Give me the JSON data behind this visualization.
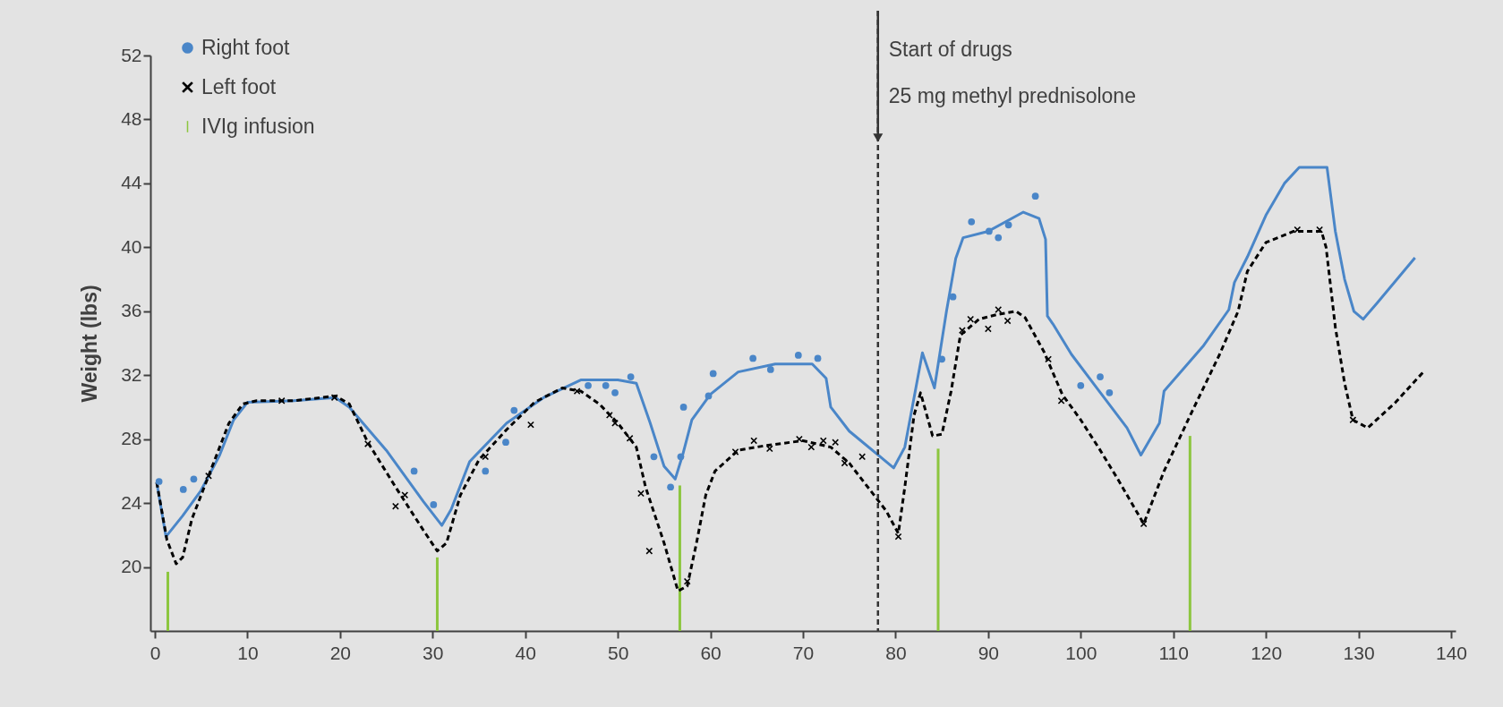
{
  "chart_data": {
    "type": "scatter",
    "ylabel": "Weight (lbs)",
    "xlim": [
      0,
      140
    ],
    "xticks": [
      0,
      10,
      20,
      30,
      40,
      50,
      60,
      70,
      80,
      90,
      100,
      110,
      120,
      130,
      140
    ],
    "ylim": [
      16,
      52
    ],
    "yticks": [
      20,
      24,
      28,
      32,
      36,
      40,
      44,
      48,
      52
    ],
    "legend": "top left",
    "series": [
      {
        "name": "Right foot",
        "color": "#4a86c8",
        "marker": "circle",
        "x": [
          0.45,
          3.07,
          4.2,
          28.0,
          30.1,
          35.7,
          37.9,
          38.8,
          46.8,
          48.7,
          49.7,
          51.4,
          53.9,
          55.7,
          56.8,
          57.1,
          59.8,
          60.3,
          64.6,
          66.5,
          69.5,
          71.6,
          85.0,
          86.2,
          88.2,
          90.1,
          91.1,
          92.2,
          95.1,
          100.0,
          102.1,
          103.1
        ],
        "values": [
          25.35,
          24.85,
          25.5,
          26.0,
          23.9,
          26.0,
          27.8,
          29.8,
          31.35,
          31.35,
          30.9,
          31.9,
          26.9,
          25.0,
          26.9,
          30.0,
          30.7,
          32.1,
          33.05,
          32.35,
          33.25,
          33.05,
          33.0,
          36.9,
          41.6,
          41.0,
          40.6,
          41.4,
          43.2,
          31.35,
          31.9,
          30.9
        ]
      },
      {
        "name": "Left foot",
        "color": "#000000",
        "marker": "cross",
        "x": [
          5.8,
          13.7,
          19.4,
          23.0,
          26.0,
          27.0,
          35.7,
          40.6,
          45.6,
          49.1,
          49.7,
          51.3,
          52.5,
          53.4,
          57.5,
          62.7,
          64.7,
          66.4,
          69.6,
          70.9,
          72.2,
          73.5,
          74.5,
          76.4,
          80.3,
          87.2,
          88.1,
          90.0,
          91.1,
          92.1,
          96.5,
          97.9,
          106.8,
          123.4,
          125.8,
          129.4
        ],
        "values": [
          25.7,
          30.4,
          30.6,
          27.7,
          23.8,
          24.5,
          26.9,
          28.9,
          31.0,
          29.5,
          29.0,
          28.05,
          24.6,
          21.0,
          19.1,
          27.2,
          27.9,
          27.4,
          28.0,
          27.5,
          27.9,
          27.8,
          26.5,
          26.9,
          21.9,
          34.8,
          35.5,
          34.9,
          36.1,
          35.4,
          33.0,
          30.4,
          22.7,
          41.1,
          41.1,
          29.2
        ]
      },
      {
        "type": "line",
        "color": "#4a86c8",
        "line_style": "solid",
        "x": [
          0.2,
          1.2,
          3,
          5,
          7,
          8.5,
          10,
          15,
          19.5,
          21,
          25,
          29,
          31,
          32,
          34,
          38,
          42,
          46,
          50,
          52,
          53.5,
          55,
          56.2,
          57,
          58,
          60,
          63,
          67,
          71,
          72.5,
          73,
          75,
          79.8,
          81,
          82.9,
          84.2,
          85.5,
          86.5,
          87.3,
          90,
          93.8,
          95.5,
          96.2,
          96.4,
          97,
          99,
          102,
          105,
          106.5,
          108.5,
          109,
          113.2,
          116,
          116.6,
          118,
          120,
          122,
          123.6,
          126.6,
          127.5,
          128.5,
          129.5,
          130.5,
          132,
          136.1
        ],
        "values": [
          25.3,
          21.9,
          23.2,
          24.8,
          27,
          29.2,
          30.3,
          30.4,
          30.6,
          30,
          27.3,
          24.1,
          22.6,
          23.6,
          26.6,
          29,
          30.6,
          31.7,
          31.7,
          31.5,
          29,
          26.3,
          25.5,
          27,
          29.2,
          30.8,
          32.2,
          32.7,
          32.7,
          31.8,
          30,
          28.5,
          26.2,
          27.5,
          33.4,
          31.2,
          36,
          39.3,
          40.6,
          41,
          42.2,
          41.8,
          40.5,
          35.7,
          35.2,
          33.3,
          31,
          28.7,
          27.0,
          29,
          31,
          33.8,
          36.1,
          37.8,
          39.4,
          42,
          44,
          45,
          45,
          41,
          38,
          36,
          35.5,
          36.5,
          39.35
        ]
      },
      {
        "type": "line",
        "color": "#000000",
        "line_style": "dashed",
        "x": [
          0.2,
          1.3,
          2.3,
          3,
          4,
          6,
          8,
          9.5,
          11,
          15,
          19.5,
          21,
          23,
          26,
          29,
          30.5,
          31.5,
          33,
          35,
          38,
          41,
          44,
          46,
          48,
          50,
          52,
          53,
          55,
          56.5,
          57.5,
          58.5,
          59.5,
          60.5,
          63,
          66,
          70,
          73,
          75,
          77,
          79,
          80.3,
          81,
          82,
          82.7,
          84.0,
          85,
          86,
          87,
          89,
          91,
          93,
          94,
          96,
          98,
          100,
          102,
          104,
          106.8,
          109,
          112,
          115,
          117,
          118,
          120,
          123,
          126,
          126.5,
          127.5,
          128.5,
          129.4,
          131,
          134,
          137
        ],
        "values": [
          25.3,
          21.7,
          20.2,
          20.6,
          23,
          26,
          29,
          30.2,
          30.4,
          30.4,
          30.7,
          30.2,
          27.8,
          25,
          22.3,
          21,
          21.5,
          24.5,
          26.7,
          28.6,
          30.3,
          31.2,
          31,
          30.2,
          29,
          27.5,
          25,
          21.5,
          18.5,
          18.8,
          21.5,
          24.5,
          26,
          27.3,
          27.6,
          27.9,
          27.5,
          26.5,
          25,
          23.5,
          22.1,
          25,
          29.5,
          30.9,
          28.2,
          28.3,
          31,
          34.5,
          35.5,
          35.8,
          36,
          35.6,
          33.5,
          30.8,
          29.2,
          27.4,
          25.5,
          22.7,
          26,
          29.7,
          33.3,
          36,
          38.5,
          40.3,
          41,
          41,
          40,
          35,
          31.5,
          29.2,
          28.7,
          30.3,
          32.2
        ]
      },
      {
        "name": "IVIg infusion",
        "type": "bar",
        "color": "#8cc63f",
        "x": [
          1.4,
          30.5,
          56.7,
          84.6,
          111.8
        ],
        "base": [
          16,
          16,
          16,
          16,
          16
        ],
        "values": [
          3.7,
          4.6,
          9.1,
          11.4,
          12.2
        ]
      }
    ],
    "ref_lines": [
      {
        "axis": "x",
        "value": 78.1,
        "label": "Start of drugs",
        "color": "#333333",
        "line_style": "dashed"
      }
    ],
    "annotations": [
      "25 mg methyl prednisolone"
    ]
  }
}
